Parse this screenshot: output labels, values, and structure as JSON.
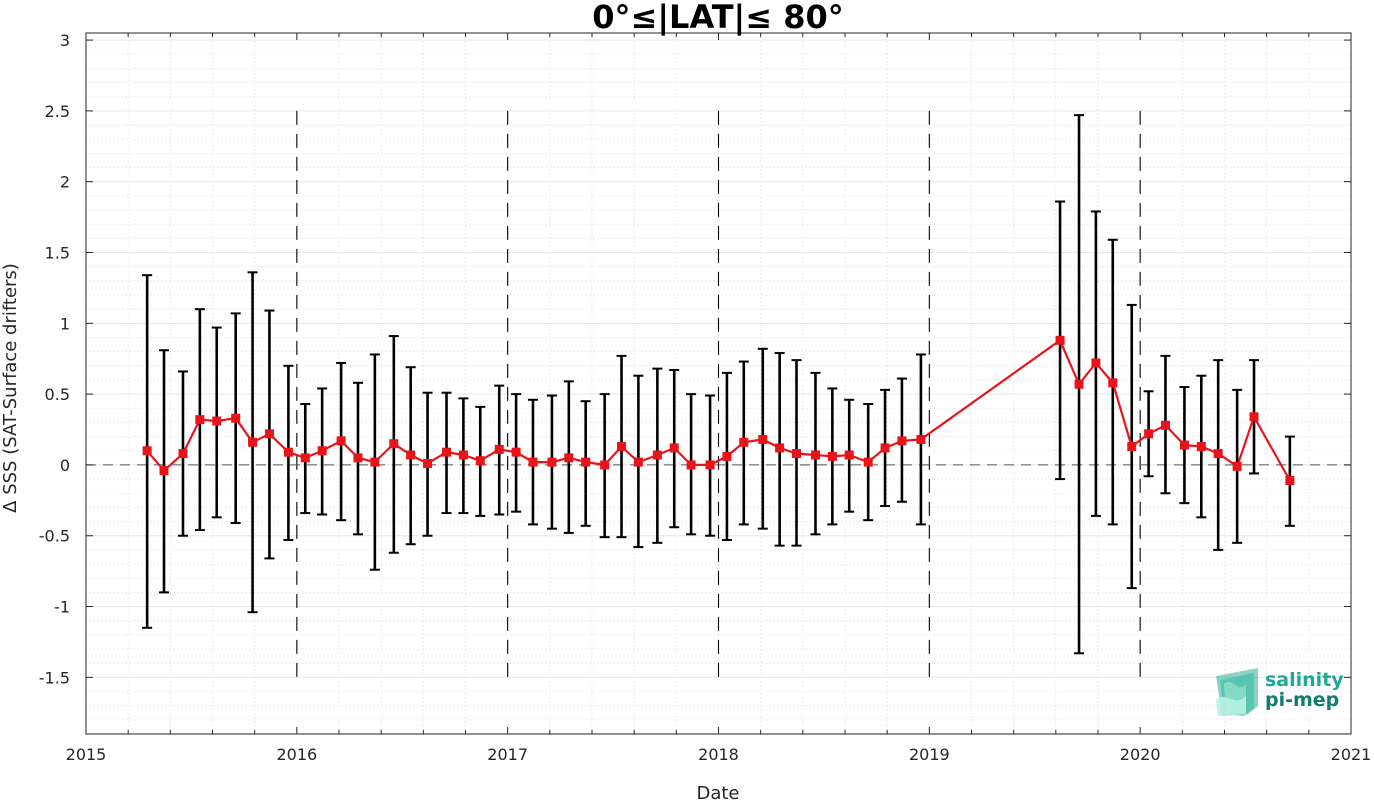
{
  "chart_data": {
    "type": "line",
    "title": "0°≤|LAT|≤ 80°",
    "xlabel": "Date",
    "ylabel": "Δ SSS (SAT-Surface drifters)",
    "xlim": [
      2015,
      2021
    ],
    "ylim": [
      -1.9,
      3.05
    ],
    "x_ticks": [
      "2015",
      "2016",
      "2017",
      "2018",
      "2019",
      "2020",
      "2021"
    ],
    "y_ticks": [
      "3",
      "2.5",
      "2",
      "1.5",
      "1",
      "0.5",
      "0",
      "-0.5",
      "-1",
      "-1.5"
    ],
    "grid": true,
    "minor_grid": true,
    "reference_line_y": 0,
    "year_boundaries": [
      2016,
      2017,
      2018,
      2019,
      2020
    ],
    "series": [
      {
        "color": "#e8141a",
        "marker": "square",
        "x": [
          2015.29,
          2015.37,
          2015.46,
          2015.54,
          2015.62,
          2015.71,
          2015.79,
          2015.87,
          2015.96,
          2016.04,
          2016.12,
          2016.21,
          2016.29,
          2016.37,
          2016.46,
          2016.54,
          2016.62,
          2016.71,
          2016.79,
          2016.87,
          2016.96,
          2017.04,
          2017.12,
          2017.21,
          2017.29,
          2017.37,
          2017.46,
          2017.54,
          2017.62,
          2017.71,
          2017.79,
          2017.87,
          2017.96,
          2018.04,
          2018.12,
          2018.21,
          2018.29,
          2018.37,
          2018.46,
          2018.54,
          2018.62,
          2018.71,
          2018.79,
          2018.87,
          2018.96,
          2019.62,
          2019.71,
          2019.79,
          2019.87,
          2019.96,
          2020.04,
          2020.12,
          2020.21,
          2020.29,
          2020.37,
          2020.46,
          2020.54,
          2020.71
        ],
        "y": [
          0.1,
          -0.04,
          0.08,
          0.32,
          0.31,
          0.33,
          0.16,
          0.22,
          0.09,
          0.05,
          0.1,
          0.17,
          0.05,
          0.02,
          0.15,
          0.07,
          0.01,
          0.09,
          0.07,
          0.03,
          0.11,
          0.09,
          0.02,
          0.02,
          0.05,
          0.02,
          0.0,
          0.13,
          0.02,
          0.07,
          0.12,
          0.0,
          0.0,
          0.06,
          0.16,
          0.18,
          0.12,
          0.08,
          0.07,
          0.06,
          0.07,
          0.02,
          0.12,
          0.17,
          0.18,
          0.88,
          0.57,
          0.72,
          0.58,
          0.13,
          0.22,
          0.28,
          0.14,
          0.13,
          0.08,
          -0.01,
          0.34,
          -0.11
        ],
        "err_low": [
          -1.15,
          -0.9,
          -0.5,
          -0.46,
          -0.37,
          -0.41,
          -1.04,
          -0.66,
          -0.53,
          -0.34,
          -0.35,
          -0.39,
          -0.49,
          -0.74,
          -0.62,
          -0.56,
          -0.5,
          -0.34,
          -0.34,
          -0.36,
          -0.35,
          -0.33,
          -0.42,
          -0.45,
          -0.48,
          -0.43,
          -0.51,
          -0.51,
          -0.58,
          -0.55,
          -0.44,
          -0.49,
          -0.5,
          -0.53,
          -0.42,
          -0.45,
          -0.57,
          -0.57,
          -0.49,
          -0.42,
          -0.33,
          -0.39,
          -0.29,
          -0.26,
          -0.42,
          -0.1,
          -1.33,
          -0.36,
          -0.42,
          -0.87,
          -0.08,
          -0.2,
          -0.27,
          -0.37,
          -0.6,
          -0.55,
          -0.06,
          -0.43
        ],
        "err_high": [
          1.34,
          0.81,
          0.66,
          1.1,
          0.97,
          1.07,
          1.36,
          1.09,
          0.7,
          0.43,
          0.54,
          0.72,
          0.58,
          0.78,
          0.91,
          0.69,
          0.51,
          0.51,
          0.47,
          0.41,
          0.56,
          0.5,
          0.46,
          0.49,
          0.59,
          0.45,
          0.5,
          0.77,
          0.63,
          0.68,
          0.67,
          0.5,
          0.49,
          0.65,
          0.73,
          0.82,
          0.79,
          0.74,
          0.65,
          0.54,
          0.46,
          0.43,
          0.53,
          0.61,
          0.78,
          1.86,
          2.47,
          1.79,
          1.59,
          1.13,
          0.52,
          0.77,
          0.55,
          0.63,
          0.74,
          0.53,
          0.74,
          0.2
        ]
      }
    ]
  },
  "logo": {
    "line1": "salinity",
    "line2": "pi-mep",
    "color1": "#1ea896",
    "color2": "#107d70"
  }
}
